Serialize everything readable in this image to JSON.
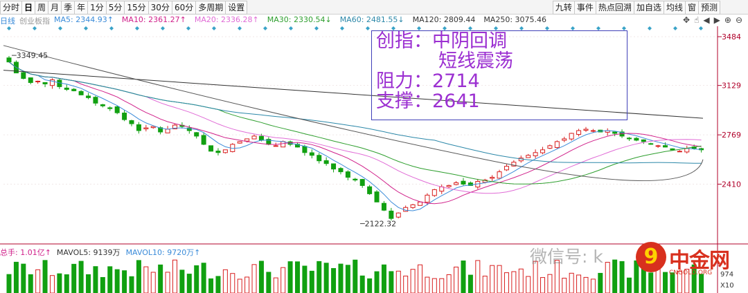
{
  "toolbar": {
    "left_items": [
      "分时",
      "日",
      "周",
      "月",
      "季",
      "年",
      "1分",
      "5分",
      "15分",
      "30分",
      "60分",
      "多周期",
      "设置"
    ],
    "active": "日",
    "right_items": [
      "九转",
      "事件",
      "热点回溯",
      "加自选",
      "均线",
      "窗",
      "预测"
    ]
  },
  "legend": {
    "period": "日线",
    "name": "创业板指",
    "ma": [
      {
        "label": "MA5: 2344.93↑",
        "color": "#3a8bd9"
      },
      {
        "label": "MA10: 2361.27↑",
        "color": "#d0208a"
      },
      {
        "label": "MA20: 2336.28↑",
        "color": "#e06bd6"
      },
      {
        "label": "MA30: 2330.54↓",
        "color": "#2d9e2d"
      },
      {
        "label": "MA60: 2481.55↓",
        "color": "#2a87a8"
      },
      {
        "label": "MA120: 2809.44",
        "color": "#333333"
      },
      {
        "label": "MA250: 3075.46",
        "color": "#333333"
      }
    ]
  },
  "annotation": {
    "line1": "创指：中阴回调",
    "line2": "短线震荡",
    "line3": "阻力：2714",
    "line4": "支撑：2641"
  },
  "price_labels": {
    "high": "3349.45",
    "low": "2122.32"
  },
  "axis": {
    "ticks": [
      "3484",
      "3129",
      "2769",
      "2410"
    ],
    "tick_values": [
      3484,
      3129,
      2769,
      2410
    ],
    "color_axis": "#b0002a"
  },
  "volume": {
    "legend": [
      {
        "label": "总手: 1.01亿↑",
        "color": "#d0208a"
      },
      {
        "label": "MAVOL5: 9139万",
        "color": "#333333"
      },
      {
        "label": "MAVOL10: 9720万↑",
        "color": "#3a8bd9"
      }
    ],
    "axis_labels": [
      "974",
      "X10"
    ]
  },
  "watermark": "微信号: k",
  "logo": {
    "mark": "9",
    "text": "中金网",
    "sub": "CNGOLD.ORG"
  },
  "colors": {
    "up": "#d81e1e",
    "down": "#11a011",
    "annot": "#9b2fd1"
  },
  "chart_data": {
    "type": "candlestick",
    "approx_close": [
      3300,
      3220,
      3180,
      3150,
      3160,
      3140,
      3170,
      3120,
      3100,
      3090,
      3060,
      3040,
      3000,
      2980,
      2960,
      2930,
      2880,
      2850,
      2800,
      2820,
      2830,
      2790,
      2810,
      2840,
      2830,
      2800,
      2760,
      2700,
      2650,
      2640,
      2660,
      2700,
      2720,
      2740,
      2760,
      2730,
      2700,
      2690,
      2720,
      2700,
      2680,
      2640,
      2620,
      2580,
      2560,
      2520,
      2500,
      2460,
      2440,
      2400,
      2340,
      2280,
      2220,
      2160,
      2200,
      2240,
      2260,
      2280,
      2330,
      2370,
      2390,
      2400,
      2420,
      2410,
      2400,
      2430,
      2440,
      2460,
      2500,
      2540,
      2570,
      2600,
      2620,
      2640,
      2660,
      2690,
      2720,
      2740,
      2780,
      2800,
      2810,
      2800,
      2790,
      2800,
      2780,
      2760,
      2740,
      2730,
      2720,
      2700,
      2690,
      2680,
      2660,
      2650,
      2670,
      2670,
      2660
    ]
  }
}
